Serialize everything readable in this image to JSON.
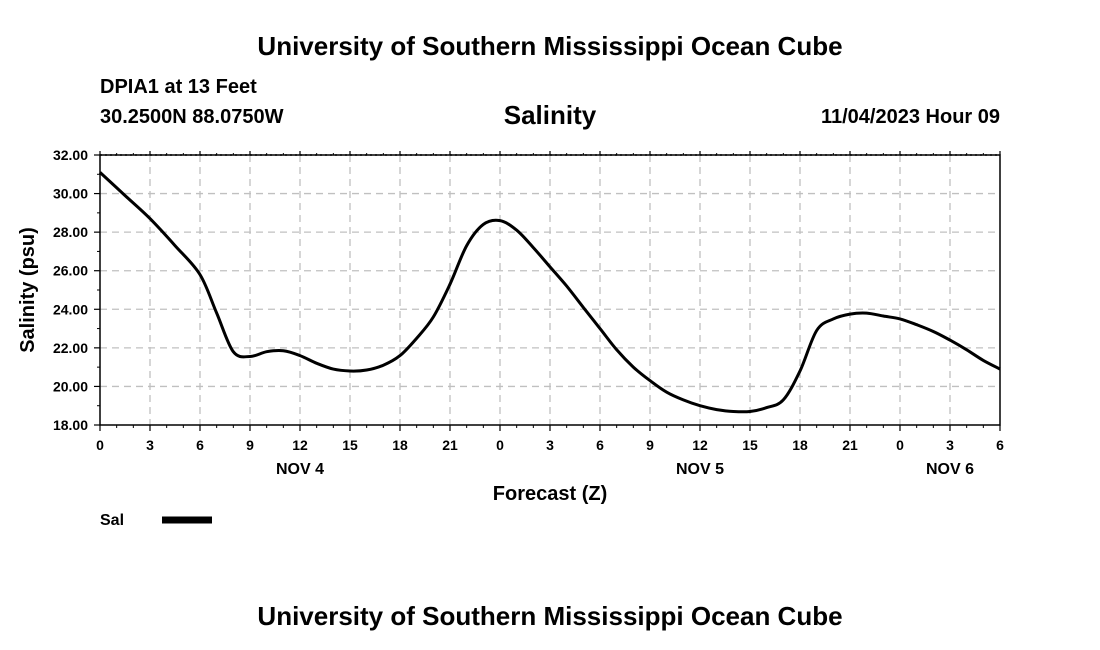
{
  "page": {
    "top_title": "University of Southern Mississippi Ocean Cube",
    "bottom_title": "University of Southern Mississippi Ocean Cube",
    "station": "DPIA1 at 13 Feet",
    "coords": "30.2500N  88.0750W",
    "timestamp": "11/04/2023 Hour 09"
  },
  "colors": {
    "line": "#000000",
    "grid": "#c0c0c0",
    "frame": "#000000"
  },
  "chart_data": {
    "type": "line",
    "title": "Salinity",
    "xlabel": "Forecast (Z)",
    "ylabel": "Salinity (psu)",
    "ylim": [
      18,
      32
    ],
    "xlim": [
      0,
      54
    ],
    "y_ticks": [
      "18.00",
      "20.00",
      "22.00",
      "24.00",
      "26.00",
      "28.00",
      "30.00",
      "32.00"
    ],
    "x_ticks": [
      "0",
      "3",
      "6",
      "9",
      "12",
      "15",
      "18",
      "21",
      "0",
      "3",
      "6",
      "9",
      "12",
      "15",
      "18",
      "21",
      "0",
      "3",
      "6"
    ],
    "date_labels": [
      {
        "label": "NOV 4",
        "hour": 12
      },
      {
        "label": "NOV 5",
        "hour": 36
      },
      {
        "label": "NOV 6",
        "hour": 51
      }
    ],
    "grid": true,
    "legend": {
      "position": "bottom-left",
      "entries": [
        "Sal"
      ]
    },
    "series": [
      {
        "name": "Sal",
        "x": [
          0,
          1.5,
          3,
          4.5,
          6,
          7,
          8,
          9,
          10,
          11,
          12,
          13,
          14,
          15,
          16,
          17,
          18,
          19,
          20,
          21,
          22,
          23,
          24,
          25,
          26,
          27,
          28,
          29,
          30,
          31,
          32,
          33,
          34,
          35,
          36,
          37,
          38,
          39,
          40,
          41,
          42,
          43,
          44,
          45,
          46,
          47,
          48,
          49,
          50,
          51,
          52,
          53,
          54
        ],
        "values": [
          31.1,
          29.9,
          28.7,
          27.3,
          25.8,
          23.8,
          21.8,
          21.55,
          21.8,
          21.85,
          21.6,
          21.2,
          20.9,
          20.8,
          20.85,
          21.1,
          21.6,
          22.5,
          23.6,
          25.3,
          27.3,
          28.4,
          28.6,
          28.1,
          27.2,
          26.2,
          25.2,
          24.1,
          23.0,
          21.9,
          21.0,
          20.3,
          19.7,
          19.3,
          19.0,
          18.8,
          18.7,
          18.7,
          18.9,
          19.3,
          20.8,
          22.9,
          23.5,
          23.75,
          23.8,
          23.65,
          23.5,
          23.2,
          22.85,
          22.4,
          21.9,
          21.35,
          20.9
        ]
      }
    ]
  }
}
